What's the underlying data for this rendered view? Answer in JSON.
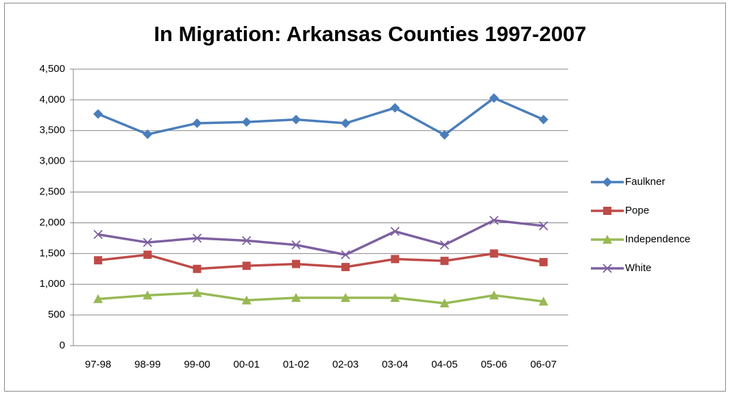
{
  "chart_data": {
    "type": "line",
    "title": "In Migration:  Arkansas Counties 1997-2007",
    "categories": [
      "97-98",
      "98-99",
      "99-00",
      "00-01",
      "01-02",
      "02-03",
      "03-04",
      "04-05",
      "05-06",
      "06-07"
    ],
    "series": [
      {
        "name": "Faulkner",
        "color": "#4a7ebb",
        "marker": "diamond",
        "values": [
          3770,
          3440,
          3620,
          3640,
          3680,
          3620,
          3870,
          3430,
          4030,
          3680
        ]
      },
      {
        "name": "Pope",
        "color": "#be4b48",
        "marker": "square",
        "values": [
          1390,
          1480,
          1250,
          1300,
          1330,
          1280,
          1410,
          1380,
          1500,
          1360
        ]
      },
      {
        "name": "Independence",
        "color": "#98b954",
        "marker": "triangle",
        "values": [
          760,
          820,
          860,
          740,
          780,
          780,
          780,
          690,
          820,
          720
        ]
      },
      {
        "name": "White",
        "color": "#7d60a0",
        "marker": "x",
        "values": [
          1810,
          1680,
          1750,
          1710,
          1640,
          1480,
          1860,
          1640,
          2040,
          1950
        ]
      }
    ],
    "ylim": [
      0,
      4500
    ],
    "yticks": [
      0,
      500,
      {
        "value": 1000,
        "label": "1,000"
      },
      {
        "value": 1500,
        "label": "1,500"
      },
      {
        "value": 2000,
        "label": "2,000"
      },
      {
        "value": 2500,
        "label": "2,500"
      },
      {
        "value": 3000,
        "label": "3,000"
      },
      {
        "value": 3500,
        "label": "3,500"
      },
      {
        "value": 4000,
        "label": "4,000"
      },
      {
        "value": 4500,
        "label": "4,500"
      }
    ],
    "grid": true,
    "legend": "right"
  }
}
